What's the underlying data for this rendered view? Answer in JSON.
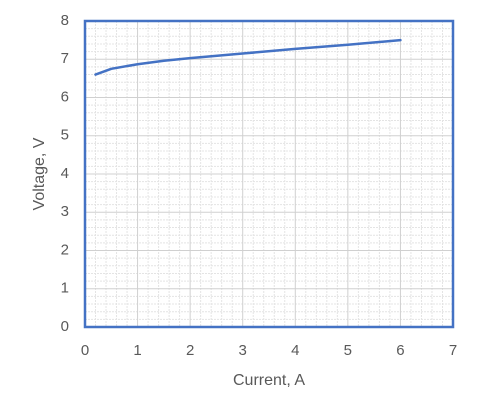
{
  "chart_data": {
    "type": "line",
    "x_label": "Current, A",
    "y_label": "Voltage, V",
    "x": [
      0.2,
      0.5,
      1,
      1.5,
      2,
      3,
      4,
      5,
      6
    ],
    "series": [
      {
        "name": "Voltage",
        "color": "#4472c4",
        "values": [
          6.6,
          6.75,
          6.87,
          6.96,
          7.03,
          7.15,
          7.27,
          7.38,
          7.5
        ]
      }
    ],
    "xlim": [
      0,
      7
    ],
    "xticks": [
      0,
      1,
      2,
      3,
      4,
      5,
      6,
      7
    ],
    "ylim": [
      0,
      8
    ],
    "yticks": [
      0,
      1,
      2,
      3,
      4,
      5,
      6,
      7,
      8
    ],
    "grid": true,
    "minor_grid": true,
    "border_color": "#4472c4"
  }
}
